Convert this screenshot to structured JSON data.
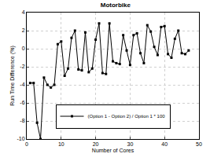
{
  "chart_data": {
    "type": "line",
    "title": "Motorbike",
    "x_label": "Number of Cores",
    "y_label": "Run Time Difference (%)",
    "x": [
      1,
      2,
      3,
      4,
      5,
      6,
      7,
      8,
      9,
      10,
      11,
      12,
      13,
      14,
      15,
      16,
      17,
      18,
      19,
      20,
      21,
      22,
      23,
      24,
      25,
      26,
      27,
      28,
      29,
      30,
      31,
      32,
      33,
      34,
      35,
      36,
      37,
      38,
      39,
      40,
      41,
      42,
      43,
      44,
      45,
      46,
      47
    ],
    "series": [
      {
        "name": "(Option 1 - Option 2) / Option 1 * 100",
        "color": "#000000",
        "marker": "square",
        "line_style": "solid",
        "values": [
          -3.8,
          -3.8,
          -8.2,
          -10,
          -3.2,
          -4.0,
          -4.3,
          -4.0,
          0.5,
          0.8,
          -3.0,
          -2.2,
          1.2,
          2.0,
          -2.3,
          -2.4,
          1.8,
          -2.6,
          -2.2,
          1.0,
          2.8,
          -2.7,
          -2.8,
          2.8,
          -1.4,
          -1.6,
          -1.7,
          1.5,
          -0.2,
          -1.8,
          1.5,
          1.7,
          -0.5,
          -1.6,
          2.6,
          1.9,
          0.2,
          -0.7,
          2.4,
          2.5,
          -0.6,
          -1.0,
          1.1,
          2.0,
          -0.5,
          -0.6,
          -0.2
        ]
      }
    ],
    "xlim": [
      0,
      50
    ],
    "xticks": [
      0,
      10,
      20,
      30,
      40,
      50
    ],
    "ylim": [
      -10,
      4
    ],
    "yticks": [
      -10,
      -8,
      -6,
      -4,
      -2,
      0,
      2,
      4
    ],
    "grid": true,
    "legend": "bottom"
  }
}
